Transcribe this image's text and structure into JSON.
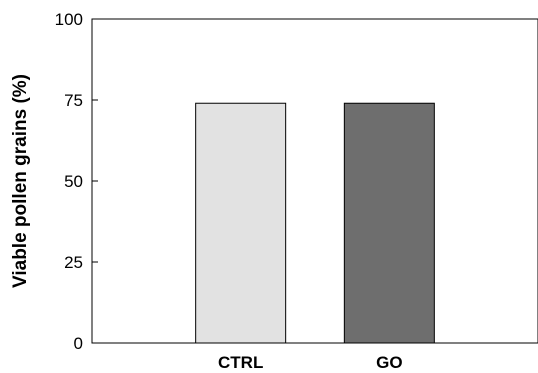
{
  "chart_data": {
    "type": "bar",
    "title": "",
    "xlabel": "",
    "ylabel": "Viable pollen grains (%)",
    "categories": [
      "CTRL",
      "GO"
    ],
    "values": [
      74,
      74
    ],
    "bar_colors": [
      "#e2e2e2",
      "#6e6e6e"
    ],
    "ylim": [
      0,
      100
    ],
    "yticks": [
      0,
      25,
      50,
      75,
      100
    ],
    "grid": false,
    "legend": "none"
  }
}
